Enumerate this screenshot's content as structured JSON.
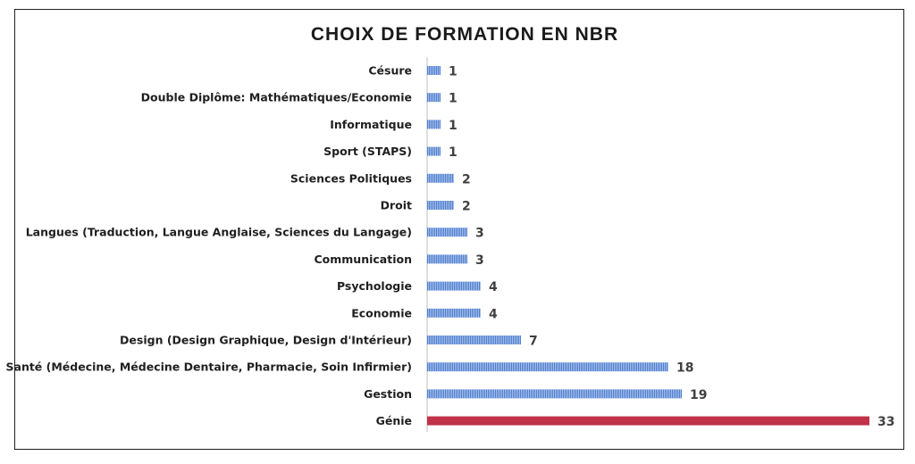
{
  "chart_data": {
    "type": "bar",
    "orientation": "horizontal",
    "title": "CHOIX DE FORMATION EN NBR",
    "xlabel": "",
    "ylabel": "",
    "xlim": [
      0,
      33
    ],
    "grid": false,
    "legend": "none",
    "colors": {
      "default": "#4f7fd0",
      "highlight": "#c0314a"
    },
    "highlight_index": 13,
    "categories": [
      "Césure",
      "Double Diplôme: Mathématiques/Economie",
      "Informatique",
      "Sport (STAPS)",
      "Sciences Politiques",
      "Droit",
      "Langues (Traduction, Langue Anglaise, Sciences du Langage)",
      "Communication",
      "Psychologie",
      "Economie",
      "Design (Design Graphique, Design d'Intérieur)",
      "Santé (Médecine, Médecine Dentaire, Pharmacie, Soin Infirmier)",
      "Gestion",
      "Génie"
    ],
    "values": [
      1,
      1,
      1,
      1,
      2,
      2,
      3,
      3,
      4,
      4,
      7,
      18,
      19,
      33
    ]
  }
}
